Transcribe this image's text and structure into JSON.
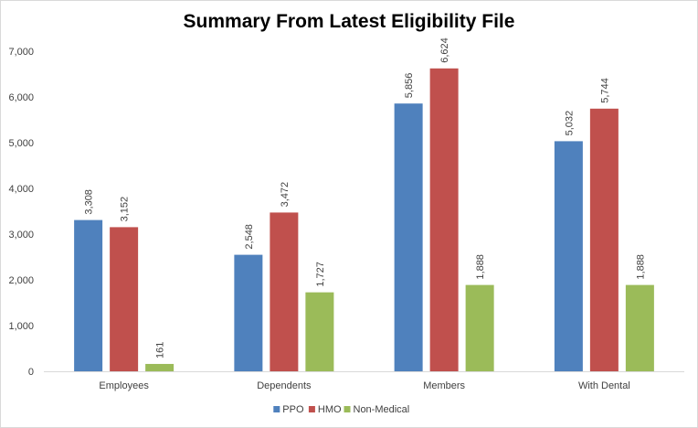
{
  "chart_data": {
    "type": "bar",
    "title": "Summary From Latest Eligibility File",
    "categories": [
      "Employees",
      "Dependents",
      "Members",
      "With Dental"
    ],
    "series": [
      {
        "name": "PPO",
        "color": "#4f81bd",
        "values": [
          3308,
          2548,
          5856,
          5032
        ],
        "labels": [
          "3,308",
          "2,548",
          "5,856",
          "5,032"
        ]
      },
      {
        "name": "HMO",
        "color": "#c0504d",
        "values": [
          3152,
          3472,
          6624,
          5744
        ],
        "labels": [
          "3,152",
          "3,472",
          "6,624",
          "5,744"
        ]
      },
      {
        "name": "Non-Medical",
        "color": "#9bbb59",
        "values": [
          161,
          1727,
          1888,
          1888
        ],
        "labels": [
          "161",
          "1,727",
          "1,888",
          "1,888"
        ]
      }
    ],
    "ylim": [
      0,
      7000
    ],
    "yticks": [
      0,
      1000,
      2000,
      3000,
      4000,
      5000,
      6000,
      7000
    ],
    "ytick_labels": [
      "0",
      "1,000",
      "2,000",
      "3,000",
      "4,000",
      "5,000",
      "6,000",
      "7,000"
    ],
    "xlabel": "",
    "ylabel": "",
    "grid": false,
    "legend_position": "bottom"
  }
}
